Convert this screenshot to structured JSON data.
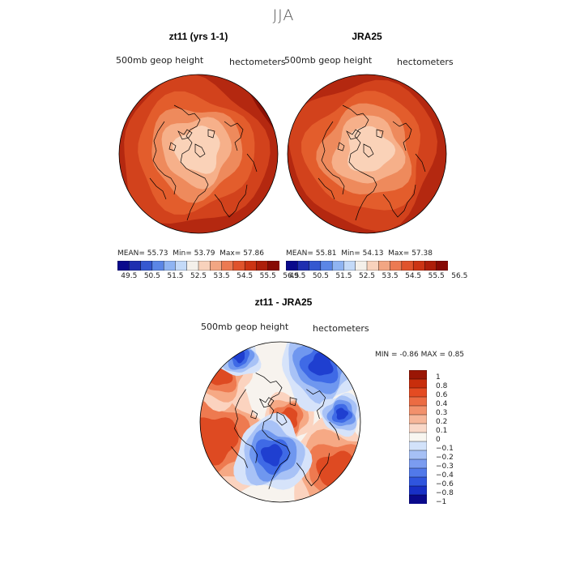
{
  "season": "JJA",
  "panels": [
    {
      "title": "zt11 (yrs 1-1)",
      "variable": "500mb geop height",
      "units": "hectometers",
      "stats": {
        "mean_label": "MEAN=",
        "mean": "55.73",
        "min_label": "Min=",
        "min": "53.79",
        "max_label": "Max=",
        "max": "57.86"
      }
    },
    {
      "title": "JRA25",
      "variable": "500mb geop height",
      "units": "hectometers",
      "stats": {
        "mean_label": "MEAN=",
        "mean": "55.81",
        "min_label": "Min=",
        "min": "54.13",
        "max_label": "Max=",
        "max": "57.38"
      }
    },
    {
      "title": "zt11 - JRA25",
      "variable": "500mb geop height",
      "units": "hectometers",
      "stats": {
        "min_label": "MIN =",
        "min": "-0.86",
        "max_label": "MAX =",
        "max": "0.85"
      }
    }
  ],
  "colorbar_top": {
    "colors": [
      "#0a0a8c",
      "#1f2fb0",
      "#3558d0",
      "#5b86e6",
      "#8fb4f2",
      "#c4daf8",
      "#f4f0ea",
      "#f8d2bc",
      "#f2a683",
      "#ec7a52",
      "#e0532c",
      "#cc3414",
      "#ad1e0a",
      "#870a05"
    ],
    "ticks": [
      "49.5",
      "50.5",
      "51.5",
      "52.5",
      "53.5",
      "54.5",
      "55.5",
      "56.5"
    ]
  },
  "colorbar_diff": {
    "colors": [
      "#0a0a8c",
      "#1830c6",
      "#2f55de",
      "#5179ea",
      "#7b9cf0",
      "#a6c0f5",
      "#d2e2fa",
      "#f8f6f0",
      "#f9d8c8",
      "#f6b699",
      "#f2916c",
      "#ec6c43",
      "#e44b22",
      "#c82e0c",
      "#9a1605"
    ],
    "ticks": [
      "1",
      "0.8",
      "0.6",
      "0.4",
      "0.3",
      "0.2",
      "0.1",
      "0",
      "−0.1",
      "−0.2",
      "−0.3",
      "−0.4",
      "−0.6",
      "−0.8",
      "−1"
    ]
  },
  "map_colors": {
    "height": [
      "#8b1105",
      "#b42810",
      "#d2421c",
      "#e35d2c",
      "#ee8a5c",
      "#f6b08a",
      "#fad2b8"
    ],
    "diff_red": [
      "#de4a22",
      "#ee7a50",
      "#f6a985",
      "#fbd3bf"
    ],
    "diff_blue": [
      "#1f3fd0",
      "#3f6ae6",
      "#6f97ef",
      "#a8c2f6",
      "#d6e3fa"
    ],
    "coast": "#000000"
  }
}
